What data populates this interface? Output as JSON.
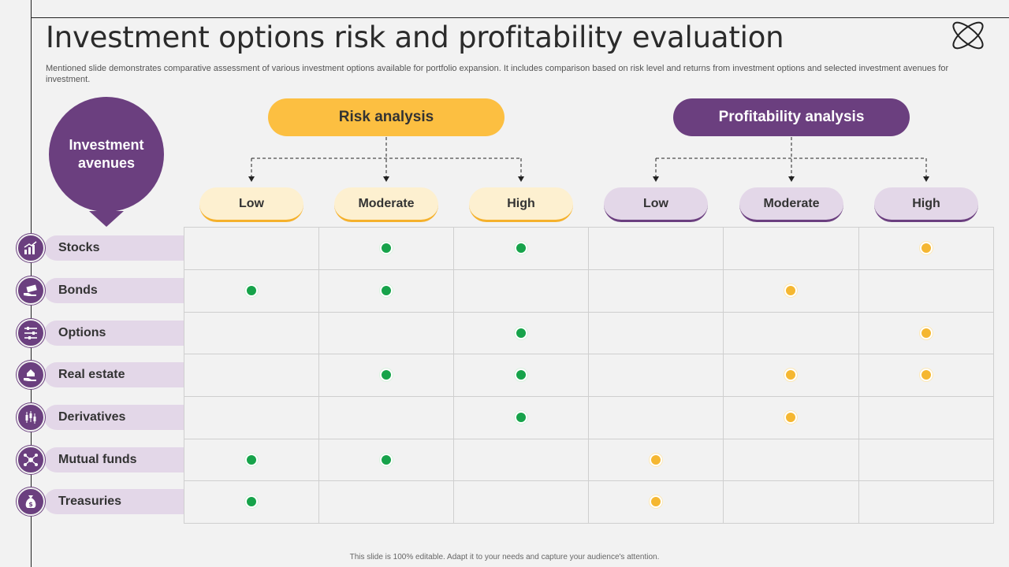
{
  "slide": {
    "title": "Investment options risk and profitability evaluation",
    "description": "Mentioned slide demonstrates comparative assessment of various investment options available for portfolio expansion. It includes comparison based on risk level and returns from investment options and selected investment avenues for investment.",
    "footer": "This slide is 100% editable. Adapt it to your needs and capture your audience's attention."
  },
  "avenues_label": "Investment avenues",
  "risk": {
    "heading": "Risk analysis",
    "levels": [
      "Low",
      "Moderate",
      "High"
    ],
    "color": "#fcbf41"
  },
  "profit": {
    "heading": "Profitability analysis",
    "levels": [
      "Low",
      "Moderate",
      "High"
    ],
    "color": "#6b3f7f"
  },
  "rows": [
    {
      "label": "Stocks",
      "icon": "chart-icon",
      "risk": [
        false,
        true,
        true
      ],
      "profit": [
        false,
        false,
        true
      ]
    },
    {
      "label": "Bonds",
      "icon": "money-hand-icon",
      "risk": [
        true,
        true,
        false
      ],
      "profit": [
        false,
        true,
        false
      ]
    },
    {
      "label": "Options",
      "icon": "sliders-icon",
      "risk": [
        false,
        false,
        true
      ],
      "profit": [
        false,
        false,
        true
      ]
    },
    {
      "label": "Real estate",
      "icon": "house-hand-icon",
      "risk": [
        false,
        true,
        true
      ],
      "profit": [
        false,
        true,
        true
      ]
    },
    {
      "label": "Derivatives",
      "icon": "candlestick-icon",
      "risk": [
        false,
        false,
        true
      ],
      "profit": [
        false,
        true,
        false
      ]
    },
    {
      "label": "Mutual funds",
      "icon": "network-icon",
      "risk": [
        true,
        true,
        false
      ],
      "profit": [
        true,
        false,
        false
      ]
    },
    {
      "label": "Treasuries",
      "icon": "money-bag-icon",
      "risk": [
        true,
        false,
        false
      ],
      "profit": [
        true,
        false,
        false
      ]
    }
  ],
  "colors": {
    "purple": "#6b3f7f",
    "yellow": "#fcbf41",
    "green_dot": "#16a34a",
    "yellow_dot": "#f5b731"
  }
}
